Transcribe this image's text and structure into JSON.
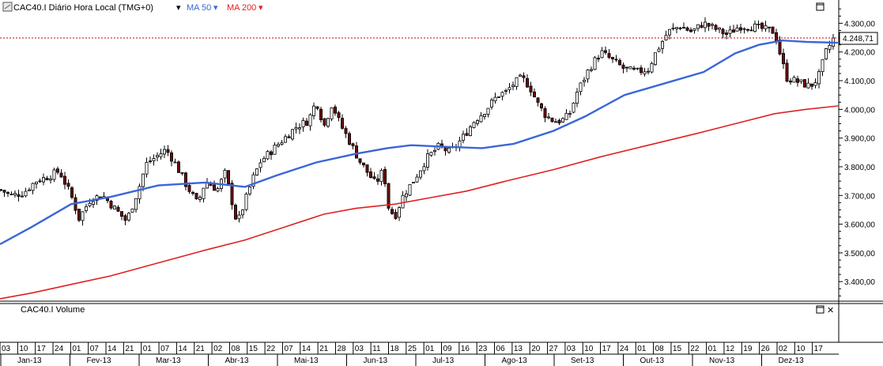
{
  "header": {
    "symbol_label": "CAC40.I Diário Hora Local (TMG+0)",
    "ma50_label": "MA 50",
    "ma200_label": "MA 200",
    "dropdown_glyph": "▾"
  },
  "volume_panel": {
    "label": "CAC40.I Volume",
    "close_glyph": "✕"
  },
  "price_badge": "4.248,71",
  "colors": {
    "ma50": "#3a66d8",
    "ma200": "#e02020",
    "price_line": "#cc0000",
    "candle_up": "#ffffff",
    "candle_down": "#6b0f0f",
    "candle_edge": "#000000",
    "axis_bg": "#ffffff",
    "grid": "#000000"
  },
  "chart_data": {
    "type": "candlestick",
    "y_axis": {
      "min": 3340,
      "max": 4370,
      "ticks": [
        "3.400,00",
        "3.500,00",
        "3.600,00",
        "3.700,00",
        "3.800,00",
        "3.900,00",
        "4.000,00",
        "4.100,00",
        "4.200,00",
        "4.300,00"
      ],
      "tick_values": [
        3400,
        3500,
        3600,
        3700,
        3800,
        3900,
        4000,
        4100,
        4200,
        4300
      ]
    },
    "last_price": 4248.71,
    "x_day_ticks": [
      "03",
      "10",
      "17",
      "24",
      "01",
      "07",
      "14",
      "21",
      "01",
      "07",
      "14",
      "21",
      "02",
      "08",
      "15",
      "22",
      "07",
      "14",
      "21",
      "28",
      "03",
      "11",
      "18",
      "25",
      "01",
      "09",
      "16",
      "23",
      "06",
      "13",
      "20",
      "27",
      "03",
      "10",
      "17",
      "24",
      "01",
      "08",
      "15",
      "22",
      "01",
      "12",
      "19",
      "26",
      "02",
      "10",
      "17"
    ],
    "x_month_ticks": [
      "Jan-13",
      "Fev-13",
      "Mar-13",
      "Abr-13",
      "Mai-13",
      "Jun-13",
      "Jul-13",
      "Ago-13",
      "Set-13",
      "Out-13",
      "Nov-13",
      "Dez-13"
    ],
    "ma50": [
      [
        0,
        3530
      ],
      [
        40,
        3590
      ],
      [
        90,
        3670
      ],
      [
        140,
        3695
      ],
      [
        200,
        3735
      ],
      [
        260,
        3745
      ],
      [
        310,
        3730
      ],
      [
        350,
        3770
      ],
      [
        400,
        3815
      ],
      [
        450,
        3845
      ],
      [
        490,
        3865
      ],
      [
        520,
        3875
      ],
      [
        560,
        3870
      ],
      [
        610,
        3865
      ],
      [
        650,
        3880
      ],
      [
        700,
        3925
      ],
      [
        740,
        3975
      ],
      [
        790,
        4050
      ],
      [
        840,
        4090
      ],
      [
        890,
        4130
      ],
      [
        930,
        4195
      ],
      [
        960,
        4225
      ],
      [
        990,
        4240
      ],
      [
        1020,
        4235
      ],
      [
        1060,
        4232
      ]
    ],
    "ma200": [
      [
        0,
        3340
      ],
      [
        40,
        3360
      ],
      [
        90,
        3390
      ],
      [
        140,
        3420
      ],
      [
        200,
        3465
      ],
      [
        260,
        3510
      ],
      [
        310,
        3545
      ],
      [
        360,
        3590
      ],
      [
        410,
        3635
      ],
      [
        450,
        3655
      ],
      [
        500,
        3670
      ],
      [
        540,
        3690
      ],
      [
        590,
        3715
      ],
      [
        640,
        3750
      ],
      [
        700,
        3790
      ],
      [
        760,
        3835
      ],
      [
        820,
        3875
      ],
      [
        880,
        3915
      ],
      [
        930,
        3950
      ],
      [
        980,
        3985
      ],
      [
        1020,
        4000
      ],
      [
        1060,
        4012
      ]
    ],
    "close_path": [
      [
        0,
        3720
      ],
      [
        15,
        3700
      ],
      [
        30,
        3710
      ],
      [
        45,
        3750
      ],
      [
        60,
        3765
      ],
      [
        75,
        3785
      ],
      [
        90,
        3700
      ],
      [
        100,
        3620
      ],
      [
        115,
        3690
      ],
      [
        130,
        3700
      ],
      [
        150,
        3640
      ],
      [
        160,
        3610
      ],
      [
        175,
        3720
      ],
      [
        185,
        3810
      ],
      [
        200,
        3840
      ],
      [
        210,
        3860
      ],
      [
        220,
        3820
      ],
      [
        235,
        3740
      ],
      [
        250,
        3670
      ],
      [
        260,
        3750
      ],
      [
        275,
        3720
      ],
      [
        285,
        3780
      ],
      [
        300,
        3600
      ],
      [
        310,
        3680
      ],
      [
        320,
        3760
      ],
      [
        330,
        3820
      ],
      [
        345,
        3860
      ],
      [
        360,
        3900
      ],
      [
        375,
        3940
      ],
      [
        390,
        3960
      ],
      [
        400,
        4030
      ],
      [
        410,
        3940
      ],
      [
        420,
        4020
      ],
      [
        430,
        3950
      ],
      [
        440,
        3900
      ],
      [
        455,
        3820
      ],
      [
        465,
        3780
      ],
      [
        475,
        3740
      ],
      [
        485,
        3790
      ],
      [
        492,
        3650
      ],
      [
        500,
        3630
      ],
      [
        510,
        3700
      ],
      [
        525,
        3760
      ],
      [
        540,
        3830
      ],
      [
        555,
        3870
      ],
      [
        570,
        3850
      ],
      [
        585,
        3900
      ],
      [
        600,
        3960
      ],
      [
        615,
        4000
      ],
      [
        630,
        4050
      ],
      [
        640,
        4060
      ],
      [
        650,
        4090
      ],
      [
        660,
        4110
      ],
      [
        670,
        4080
      ],
      [
        680,
        4020
      ],
      [
        690,
        3980
      ],
      [
        700,
        3960
      ],
      [
        710,
        3960
      ],
      [
        720,
        3980
      ],
      [
        730,
        4060
      ],
      [
        745,
        4140
      ],
      [
        760,
        4200
      ],
      [
        775,
        4170
      ],
      [
        790,
        4140
      ],
      [
        805,
        4130
      ],
      [
        820,
        4140
      ],
      [
        830,
        4200
      ],
      [
        845,
        4270
      ],
      [
        860,
        4290
      ],
      [
        875,
        4270
      ],
      [
        890,
        4300
      ],
      [
        905,
        4280
      ],
      [
        920,
        4260
      ],
      [
        935,
        4290
      ],
      [
        950,
        4290
      ],
      [
        965,
        4280
      ],
      [
        980,
        4270
      ],
      [
        988,
        4180
      ],
      [
        995,
        4110
      ],
      [
        1005,
        4100
      ],
      [
        1015,
        4090
      ],
      [
        1025,
        4080
      ],
      [
        1035,
        4110
      ],
      [
        1045,
        4200
      ],
      [
        1055,
        4250
      ]
    ]
  }
}
